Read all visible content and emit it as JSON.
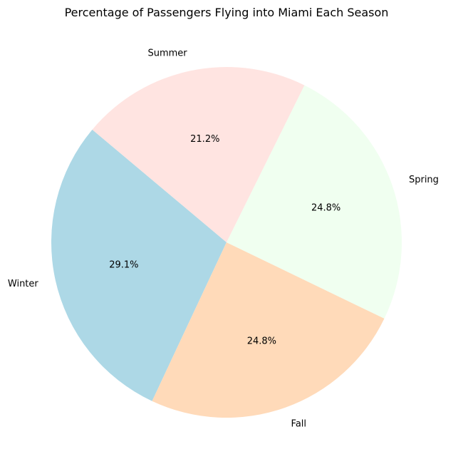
{
  "chart_data": {
    "type": "pie",
    "title": "Percentage of Passengers Flying into Miami Each Season",
    "categories": [
      "Winter",
      "Fall",
      "Spring",
      "Summer"
    ],
    "values": [
      29.1,
      24.8,
      24.8,
      21.2
    ],
    "percent_labels": [
      "29.1%",
      "24.8%",
      "24.8%",
      "21.2%"
    ],
    "colors": [
      "#add8e6",
      "#ffdab9",
      "#f0fff0",
      "#ffe4e1"
    ],
    "start_angle_deg": 140,
    "direction": "counterclockwise",
    "legend": "none"
  }
}
